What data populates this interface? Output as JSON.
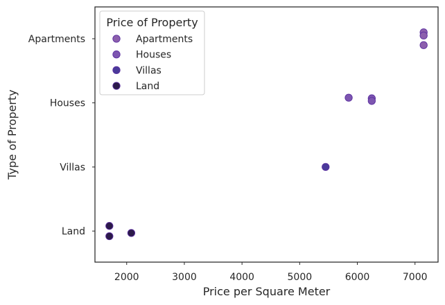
{
  "chart_data": {
    "type": "scatter",
    "title": "",
    "xlabel": "Price per Square Meter",
    "ylabel": "Type of Property",
    "xlim": [
      1450,
      7400
    ],
    "x_ticks": [
      2000,
      3000,
      4000,
      5000,
      6000,
      7000
    ],
    "categories": [
      "Apartments",
      "Houses",
      "Villas",
      "Land"
    ],
    "legend": {
      "title": "Price of Property",
      "placement": "upper left"
    },
    "grid": false,
    "series": [
      {
        "name": "Apartments",
        "color": "#8c5fad",
        "points": [
          {
            "x": 7150,
            "y": "Apartments",
            "offset": -0.1
          },
          {
            "x": 7150,
            "y": "Apartments",
            "offset": -0.05
          },
          {
            "x": 7150,
            "y": "Apartments",
            "offset": 0.1
          }
        ]
      },
      {
        "name": "Houses",
        "color": "#7d56b0",
        "points": [
          {
            "x": 5850,
            "y": "Houses",
            "offset": -0.08
          },
          {
            "x": 6250,
            "y": "Houses",
            "offset": -0.07
          },
          {
            "x": 6250,
            "y": "Houses",
            "offset": -0.03
          }
        ]
      },
      {
        "name": "Villas",
        "color": "#4a3a9a",
        "points": [
          {
            "x": 5450,
            "y": "Villas",
            "offset": 0.0
          }
        ]
      },
      {
        "name": "Land",
        "color": "#2c1a4a",
        "points": [
          {
            "x": 1700,
            "y": "Land",
            "offset": -0.08
          },
          {
            "x": 1700,
            "y": "Land",
            "offset": 0.08
          },
          {
            "x": 2080,
            "y": "Land",
            "offset": 0.03
          }
        ]
      }
    ]
  }
}
